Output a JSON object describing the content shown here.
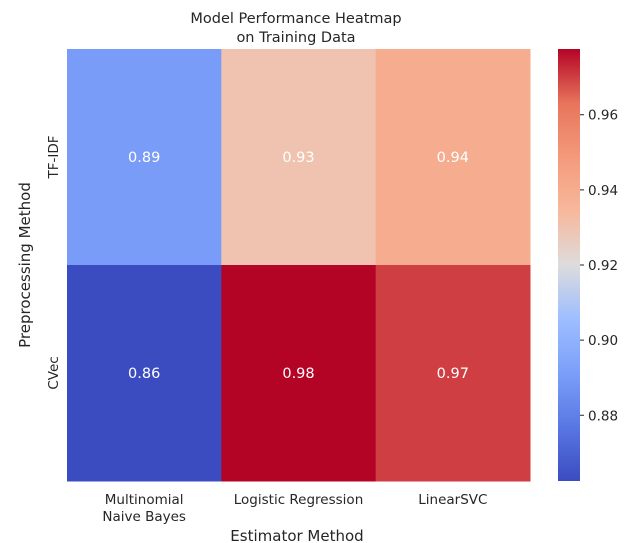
{
  "chart_data": {
    "type": "heatmap",
    "title": [
      "Model Performance Heatmap",
      "on Training Data"
    ],
    "xlabel": "Estimator Method",
    "ylabel": "Preprocessing Method",
    "x_categories": [
      [
        "Multinomial",
        "Naive Bayes"
      ],
      [
        "Logistic Regression"
      ],
      [
        "LinearSVC"
      ]
    ],
    "y_categories": [
      "TF-IDF",
      "CVec"
    ],
    "values": [
      [
        0.89,
        0.93,
        0.94
      ],
      [
        0.86,
        0.98,
        0.97
      ]
    ],
    "value_labels": [
      [
        "0.89",
        "0.93",
        "0.94"
      ],
      [
        "0.86",
        "0.98",
        "0.97"
      ]
    ],
    "colorscale": "coolwarm",
    "colorbar": {
      "range": [
        0.8625,
        0.9775
      ],
      "ticks": [
        0.88,
        0.9,
        0.92,
        0.94,
        0.96
      ],
      "tick_labels": [
        "0.88",
        "0.90",
        "0.92",
        "0.94",
        "0.96"
      ]
    },
    "grid": false,
    "legend": "colorbar-right"
  }
}
